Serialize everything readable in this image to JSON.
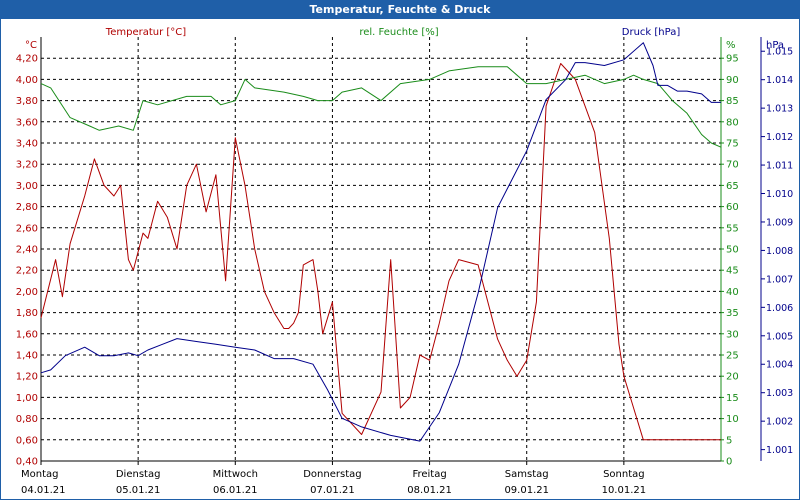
{
  "window": {
    "title": "Temperatur, Feuchte & Druck"
  },
  "colors": {
    "temperature": "#b00000",
    "humidity": "#1a8c1a",
    "pressure": "#00008b",
    "grid": "#000000",
    "title_bar": "#1f5fa8"
  },
  "chart_data": {
    "type": "line",
    "title": "Temperatur, Feuchte & Druck",
    "grid": "on (dashed)",
    "legend_placement": "top",
    "x_labels": [
      {
        "day": "Montag",
        "date": "04.01.21"
      },
      {
        "day": "Dienstag",
        "date": "05.01.21"
      },
      {
        "day": "Mittwoch",
        "date": "06.01.21"
      },
      {
        "day": "Donnerstag",
        "date": "07.01.21"
      },
      {
        "day": "Freitag",
        "date": "08.01.21"
      },
      {
        "day": "Samstag",
        "date": "09.01.21"
      },
      {
        "day": "Sonntag",
        "date": "10.01.21"
      }
    ],
    "xlim": [
      0,
      7
    ],
    "axes": {
      "temperature": {
        "unit": "°C",
        "label": "Temperatur [°C]",
        "ylim": [
          0.4,
          4.4
        ],
        "ticks": [
          "0,40",
          "0,60",
          "0,80",
          "1,00",
          "1,20",
          "1,40",
          "1,60",
          "1,80",
          "2,00",
          "2,20",
          "2,40",
          "2,60",
          "2,80",
          "3,00",
          "3,20",
          "3,40",
          "3,60",
          "3,80",
          "4,00",
          "4,20"
        ]
      },
      "humidity": {
        "unit": "%",
        "label": "rel. Feuchte [%]",
        "ylim": [
          0,
          100
        ],
        "ticks": [
          "0",
          "5",
          "10",
          "15",
          "20",
          "25",
          "30",
          "35",
          "40",
          "45",
          "50",
          "55",
          "60",
          "65",
          "70",
          "75",
          "80",
          "85",
          "90",
          "95"
        ]
      },
      "pressure": {
        "unit": "hPa",
        "label": "Druck [hPa]",
        "ylim": [
          1000.6,
          1015.5
        ],
        "ticks": [
          "1.001",
          "1.002",
          "1.003",
          "1.004",
          "1.005",
          "1.006",
          "1.007",
          "1.008",
          "1.009",
          "1.010",
          "1.011",
          "1.012",
          "1.013",
          "1.014",
          "1.015"
        ]
      }
    },
    "series": [
      {
        "name": "Temperatur [°C]",
        "axis": "temperature",
        "x": [
          0,
          0.15,
          0.22,
          0.3,
          0.45,
          0.55,
          0.65,
          0.75,
          0.82,
          0.9,
          0.95,
          1.05,
          1.1,
          1.2,
          1.3,
          1.4,
          1.5,
          1.6,
          1.7,
          1.8,
          1.9,
          2.0,
          2.1,
          2.2,
          2.3,
          2.4,
          2.5,
          2.55,
          2.6,
          2.65,
          2.7,
          2.8,
          2.85,
          2.9,
          3.0,
          3.1,
          3.3,
          3.5,
          3.6,
          3.7,
          3.8,
          3.9,
          4.0,
          4.1,
          4.2,
          4.3,
          4.5,
          4.7,
          4.8,
          4.9,
          5.0,
          5.1,
          5.2,
          5.35,
          5.5,
          5.7,
          5.85,
          5.95,
          6.0,
          6.1,
          6.2,
          6.3,
          6.4,
          6.55,
          6.7,
          6.8,
          6.9,
          7.0
        ],
        "values": [
          1.75,
          2.3,
          1.95,
          2.45,
          2.9,
          3.25,
          3.0,
          2.9,
          3.0,
          2.3,
          2.2,
          2.55,
          2.5,
          2.85,
          2.7,
          2.4,
          3.0,
          3.2,
          2.75,
          3.1,
          2.1,
          3.45,
          3.0,
          2.4,
          2.0,
          1.8,
          1.65,
          1.65,
          1.7,
          1.8,
          2.25,
          2.3,
          2.0,
          1.6,
          1.9,
          0.85,
          0.65,
          1.05,
          2.3,
          0.9,
          1.0,
          1.4,
          1.35,
          1.7,
          2.1,
          2.3,
          2.25,
          1.55,
          1.35,
          1.2,
          1.35,
          1.9,
          3.75,
          4.15,
          4.0,
          3.5,
          2.5,
          1.5,
          1.2,
          0.9,
          0.6,
          0.6,
          0.6,
          0.6,
          0.6,
          0.6,
          0.6,
          0.6
        ]
      },
      {
        "name": "rel. Feuchte [%]",
        "axis": "humidity",
        "x": [
          0,
          0.1,
          0.3,
          0.5,
          0.6,
          0.8,
          0.95,
          1.05,
          1.2,
          1.5,
          1.75,
          1.85,
          2.0,
          2.1,
          2.2,
          2.5,
          2.7,
          2.85,
          3.0,
          3.1,
          3.3,
          3.5,
          3.7,
          4.0,
          4.2,
          4.5,
          4.8,
          5.0,
          5.2,
          5.4,
          5.6,
          5.8,
          6.0,
          6.1,
          6.2,
          6.35,
          6.5,
          6.65,
          6.8,
          6.9,
          7.0
        ],
        "values": [
          89,
          88,
          81,
          79,
          78,
          79,
          78,
          85,
          84,
          86,
          86,
          84,
          85,
          90,
          88,
          87,
          86,
          85,
          85,
          87,
          88,
          85,
          89,
          90,
          92,
          93,
          93,
          89,
          89,
          90,
          91,
          89,
          90,
          91,
          90,
          89,
          85,
          82,
          77,
          75,
          74
        ]
      },
      {
        "name": "Druck [hPa]",
        "axis": "pressure",
        "x": [
          0,
          0.1,
          0.25,
          0.45,
          0.6,
          0.75,
          0.9,
          1.0,
          1.1,
          1.25,
          1.4,
          1.6,
          1.8,
          2.0,
          2.2,
          2.4,
          2.6,
          2.8,
          2.95,
          3.1,
          3.3,
          3.6,
          3.9,
          4.1,
          4.3,
          4.5,
          4.7,
          5.0,
          5.2,
          5.4,
          5.5,
          5.6,
          5.8,
          6.0,
          6.2,
          6.3,
          6.35,
          6.45,
          6.55,
          6.65,
          6.8,
          6.9,
          7.0
        ],
        "values": [
          1003.7,
          1003.8,
          1004.3,
          1004.6,
          1004.3,
          1004.3,
          1004.4,
          1004.3,
          1004.5,
          1004.7,
          1004.9,
          1004.8,
          1004.7,
          1004.6,
          1004.5,
          1004.2,
          1004.2,
          1004.0,
          1003.1,
          1002.1,
          1001.8,
          1001.5,
          1001.3,
          1002.3,
          1004.0,
          1006.5,
          1009.5,
          1011.5,
          1013.3,
          1014.0,
          1014.6,
          1014.6,
          1014.5,
          1014.7,
          1015.3,
          1014.5,
          1013.8,
          1013.8,
          1013.6,
          1013.6,
          1013.5,
          1013.2,
          1013.2
        ]
      }
    ]
  }
}
